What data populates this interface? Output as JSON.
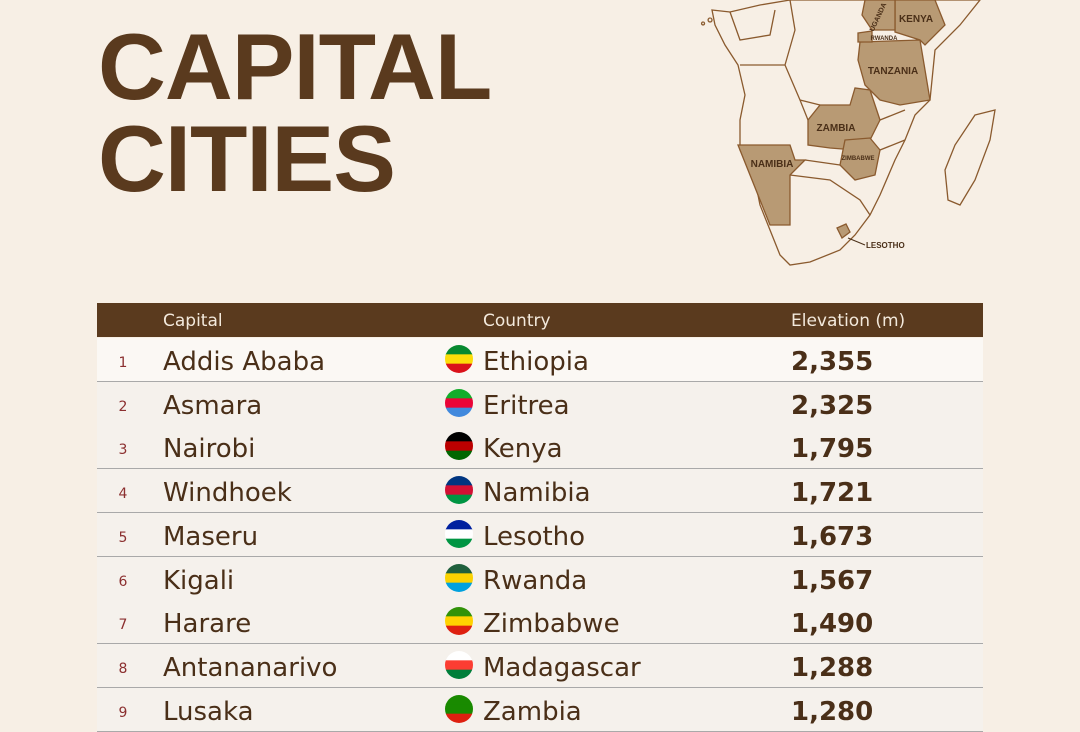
{
  "title": {
    "lines": [
      "CAPITAL",
      "CITIES"
    ]
  },
  "map": {
    "labels": [
      "KENYA",
      "UGANDA",
      "RWANDA",
      "TANZANIA",
      "ZAMBIA",
      "ZIMBABWE",
      "NAMIBIA",
      "LESOTHO"
    ]
  },
  "table": {
    "columns": [
      "Capital",
      "Country",
      "Elevation (m)"
    ],
    "rows": [
      {
        "rank": 1,
        "capital": "Addis Ababa",
        "country": "Ethiopia",
        "elevation": "2,355"
      },
      {
        "rank": 2,
        "capital": "Asmara",
        "country": "Eritrea",
        "elevation": "2,325"
      },
      {
        "rank": 3,
        "capital": "Nairobi",
        "country": "Kenya",
        "elevation": "1,795"
      },
      {
        "rank": 4,
        "capital": "Windhoek",
        "country": "Namibia",
        "elevation": "1,721"
      },
      {
        "rank": 5,
        "capital": "Maseru",
        "country": "Lesotho",
        "elevation": "1,673"
      },
      {
        "rank": 6,
        "capital": "Kigali",
        "country": "Rwanda",
        "elevation": "1,567"
      },
      {
        "rank": 7,
        "capital": "Harare",
        "country": "Zimbabwe",
        "elevation": "1,490"
      },
      {
        "rank": 8,
        "capital": "Antananarivo",
        "country": "Madagascar",
        "elevation": "1,288"
      },
      {
        "rank": 9,
        "capital": "Lusaka",
        "country": "Zambia",
        "elevation": "1,280"
      }
    ]
  }
}
